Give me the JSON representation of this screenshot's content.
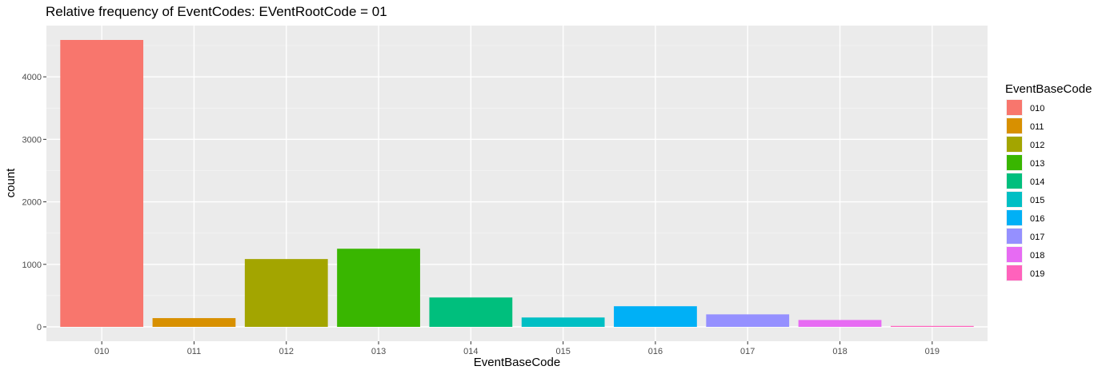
{
  "chart_data": {
    "type": "bar",
    "title": "Relative frequency of EventCodes: EVentRootCode = 01",
    "xlabel": "EventBaseCode",
    "ylabel": "count",
    "categories": [
      "010",
      "011",
      "012",
      "013",
      "014",
      "015",
      "016",
      "017",
      "018",
      "019"
    ],
    "values": [
      4590,
      140,
      1085,
      1250,
      470,
      150,
      330,
      200,
      110,
      15
    ],
    "colors": [
      "#F8766D",
      "#D89000",
      "#A3A500",
      "#39B600",
      "#00BF7D",
      "#00BFC4",
      "#00B0F6",
      "#9590FF",
      "#E76BF3",
      "#FF62BC"
    ],
    "ylim": [
      -230,
      4820
    ],
    "yticks": [
      0,
      1000,
      2000,
      3000,
      4000
    ],
    "grid": true,
    "panel_background": "#EBEBEB",
    "legend": {
      "title": "EventBaseCode",
      "position": "right",
      "entries": [
        "010",
        "011",
        "012",
        "013",
        "014",
        "015",
        "016",
        "017",
        "018",
        "019"
      ]
    }
  }
}
